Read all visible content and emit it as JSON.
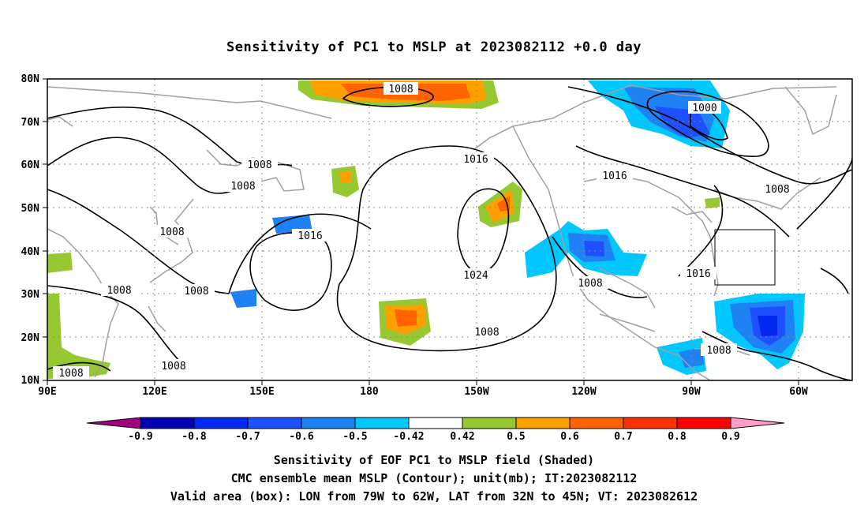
{
  "title": "Sensitivity of PC1 to MSLP at 2023082112 +0.0 day",
  "axes": {
    "lat_labels": [
      "80N",
      "70N",
      "60N",
      "50N",
      "40N",
      "30N",
      "20N",
      "10N"
    ],
    "lon_labels": [
      "90E",
      "120E",
      "150E",
      "180",
      "150W",
      "120W",
      "90W",
      "60W"
    ]
  },
  "contour_labels": [
    "1008",
    "1000",
    "1016",
    "1008",
    "1008",
    "1016",
    "1008",
    "1008",
    "1016",
    "1024",
    "1008",
    "1016",
    "1008",
    "1008",
    "1008",
    "1008"
  ],
  "colorbar": {
    "labels": [
      "-0.9",
      "-0.8",
      "-0.7",
      "-0.6",
      "-0.5",
      "-0.42",
      "0.42",
      "0.5",
      "0.6",
      "0.7",
      "0.8",
      "0.9"
    ],
    "colors": [
      "#a0007d",
      "#0000b4",
      "#0028f0",
      "#1e50ff",
      "#1e82f5",
      "#00c8ff",
      "#ffffff",
      "#96c832",
      "#ffa000",
      "#ff6400",
      "#ff3200",
      "#ff0000",
      "#ff9ec8"
    ]
  },
  "captions": {
    "line1": "Sensitivity of EOF PC1 to MSLP field (Shaded)",
    "line2": "CMC ensemble mean MSLP (Contour); unit(mb); IT:2023082112",
    "line3": "Valid area (box): LON from 79W to 62W, LAT from 32N to 45N; VT: 2023082612"
  }
}
